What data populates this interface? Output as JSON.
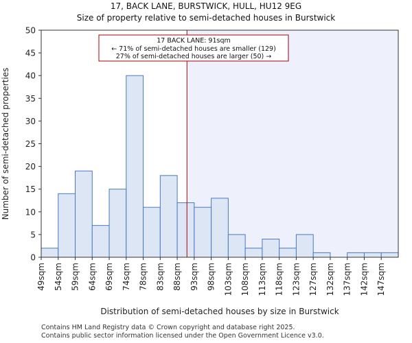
{
  "title": "17, BACK LANE, BURSTWICK, HULL, HU12 9EG",
  "subtitle": "Size of property relative to semi-detached houses in Burstwick",
  "footer": {
    "line1": "Contains HM Land Registry data © Crown copyright and database right 2025.",
    "line2": "Contains public sector information licensed under the Open Government Licence v3.0."
  },
  "colors": {
    "bar_fill": "#dce6f5",
    "bar_stroke": "#4a78c0",
    "highlight_region": "#eef0fb",
    "marker_line": "#aa0000",
    "annotation_border": "#aa0000"
  },
  "chart_data": {
    "type": "bar",
    "xlabel": "Distribution of semi-detached houses by size in Burstwick",
    "ylabel": "Number of semi-detached properties",
    "ylim": [
      0,
      50
    ],
    "yticks": [
      0,
      5,
      10,
      15,
      20,
      25,
      30,
      35,
      40,
      45,
      50
    ],
    "categories": [
      "49sqm",
      "54sqm",
      "59sqm",
      "64sqm",
      "69sqm",
      "74sqm",
      "78sqm",
      "83sqm",
      "88sqm",
      "93sqm",
      "98sqm",
      "103sqm",
      "108sqm",
      "113sqm",
      "118sqm",
      "123sqm",
      "127sqm",
      "132sqm",
      "137sqm",
      "142sqm",
      "147sqm"
    ],
    "values": [
      2,
      14,
      19,
      7,
      15,
      40,
      11,
      18,
      12,
      11,
      13,
      5,
      2,
      4,
      2,
      5,
      1,
      0,
      1,
      1,
      1
    ],
    "marker": {
      "value_sqm": 91
    },
    "annotation": {
      "line1": "17 BACK LANE: 91sqm",
      "line2": "← 71% of semi-detached houses are smaller (129)",
      "line3": "27% of semi-detached houses are larger (50) →"
    },
    "grid": false
  }
}
